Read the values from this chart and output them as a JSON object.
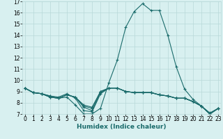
{
  "xlabel": "Humidex (Indice chaleur)",
  "x_values": [
    0,
    1,
    2,
    3,
    4,
    5,
    6,
    7,
    8,
    9,
    10,
    11,
    12,
    13,
    14,
    15,
    16,
    17,
    18,
    19,
    20,
    21,
    22,
    23
  ],
  "lines": [
    [
      9.3,
      8.9,
      8.8,
      8.6,
      8.4,
      8.5,
      7.8,
      7.0,
      7.0,
      7.5,
      9.8,
      11.8,
      14.7,
      16.1,
      16.8,
      16.2,
      16.2,
      14.0,
      11.2,
      9.2,
      8.3,
      7.7,
      7.1,
      7.5
    ],
    [
      9.3,
      8.9,
      8.8,
      8.6,
      8.5,
      8.8,
      8.4,
      7.3,
      7.2,
      8.8,
      9.3,
      9.3,
      9.0,
      8.9,
      8.9,
      8.9,
      8.7,
      8.6,
      8.4,
      8.4,
      8.1,
      7.7,
      7.0,
      7.5
    ],
    [
      9.3,
      8.9,
      8.8,
      8.5,
      8.4,
      8.7,
      8.5,
      7.6,
      7.3,
      8.9,
      9.3,
      9.3,
      9.0,
      8.9,
      8.9,
      8.9,
      8.7,
      8.6,
      8.4,
      8.4,
      8.1,
      7.7,
      7.0,
      7.5
    ],
    [
      9.3,
      8.9,
      8.8,
      8.5,
      8.4,
      8.7,
      8.5,
      7.7,
      7.5,
      9.0,
      9.3,
      9.3,
      9.0,
      8.9,
      8.9,
      8.9,
      8.7,
      8.6,
      8.4,
      8.4,
      8.1,
      7.7,
      7.0,
      7.5
    ],
    [
      9.3,
      8.9,
      8.8,
      8.5,
      8.4,
      8.7,
      8.5,
      7.8,
      7.6,
      9.0,
      9.3,
      9.3,
      9.0,
      8.9,
      8.9,
      8.9,
      8.7,
      8.6,
      8.4,
      8.4,
      8.1,
      7.7,
      7.0,
      7.5
    ]
  ],
  "line_color": "#1a6b6b",
  "marker": "+",
  "marker_size": 3.5,
  "linewidth": 0.8,
  "bg_color": "#d8f0f0",
  "grid_color": "#b8d8d8",
  "ylim": [
    7,
    17
  ],
  "xlim": [
    -0.3,
    23.3
  ],
  "yticks": [
    7,
    8,
    9,
    10,
    11,
    12,
    13,
    14,
    15,
    16,
    17
  ],
  "xticks": [
    0,
    1,
    2,
    3,
    4,
    5,
    6,
    7,
    8,
    9,
    10,
    11,
    12,
    13,
    14,
    15,
    16,
    17,
    18,
    19,
    20,
    21,
    22,
    23
  ],
  "xlabel_fontsize": 6.5,
  "tick_fontsize": 5.5
}
